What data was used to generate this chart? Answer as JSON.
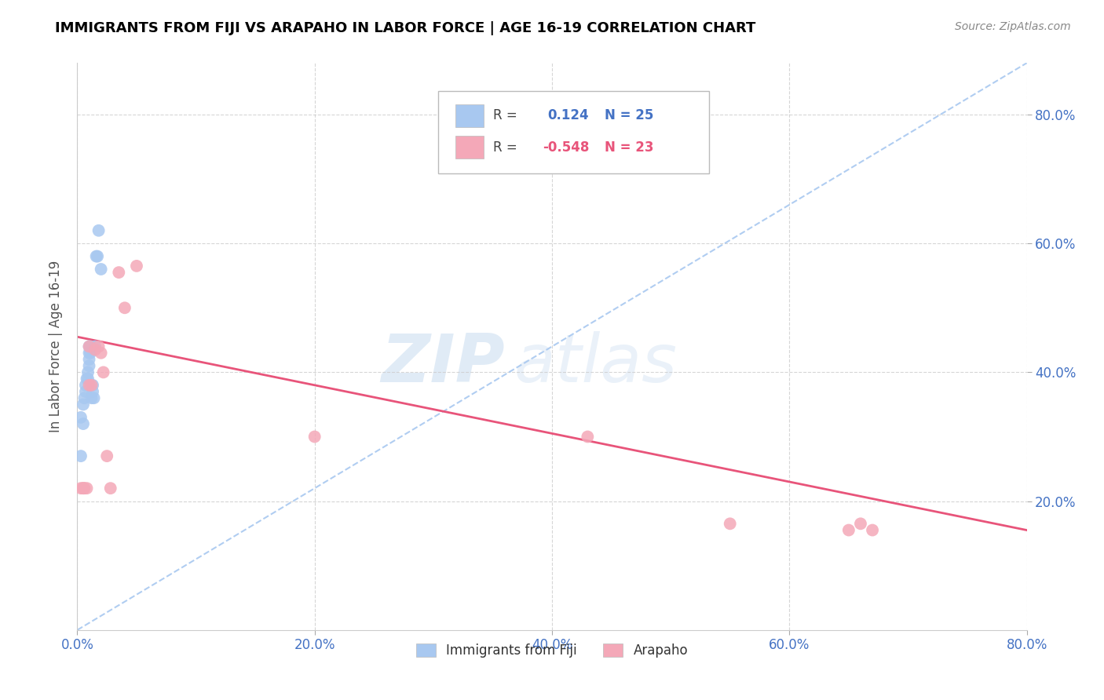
{
  "title": "IMMIGRANTS FROM FIJI VS ARAPAHO IN LABOR FORCE | AGE 16-19 CORRELATION CHART",
  "source_text": "Source: ZipAtlas.com",
  "ylabel": "In Labor Force | Age 16-19",
  "xlim": [
    0.0,
    0.8
  ],
  "ylim": [
    0.0,
    0.88
  ],
  "x_ticks": [
    0.0,
    0.2,
    0.4,
    0.6,
    0.8
  ],
  "x_tick_labels": [
    "0.0%",
    "20.0%",
    "40.0%",
    "60.0%",
    "80.0%"
  ],
  "y_ticks": [
    0.2,
    0.4,
    0.6,
    0.8
  ],
  "y_tick_labels": [
    "20.0%",
    "40.0%",
    "60.0%",
    "80.0%"
  ],
  "fiji_x": [
    0.003,
    0.003,
    0.005,
    0.005,
    0.006,
    0.007,
    0.007,
    0.008,
    0.009,
    0.009,
    0.01,
    0.01,
    0.01,
    0.01,
    0.011,
    0.011,
    0.012,
    0.013,
    0.013,
    0.014,
    0.015,
    0.016,
    0.017,
    0.018,
    0.02
  ],
  "fiji_y": [
    0.27,
    0.33,
    0.32,
    0.35,
    0.36,
    0.37,
    0.38,
    0.39,
    0.39,
    0.4,
    0.41,
    0.42,
    0.43,
    0.44,
    0.43,
    0.44,
    0.36,
    0.38,
    0.37,
    0.36,
    0.44,
    0.58,
    0.58,
    0.62,
    0.56
  ],
  "arapaho_x": [
    0.003,
    0.005,
    0.005,
    0.006,
    0.008,
    0.01,
    0.01,
    0.012,
    0.015,
    0.018,
    0.02,
    0.022,
    0.025,
    0.028,
    0.035,
    0.04,
    0.05,
    0.2,
    0.43,
    0.55,
    0.65,
    0.66,
    0.67
  ],
  "arapaho_y": [
    0.22,
    0.22,
    0.22,
    0.22,
    0.22,
    0.44,
    0.38,
    0.38,
    0.435,
    0.44,
    0.43,
    0.4,
    0.27,
    0.22,
    0.555,
    0.5,
    0.565,
    0.3,
    0.3,
    0.165,
    0.155,
    0.165,
    0.155
  ],
  "fiji_color": "#A8C8F0",
  "arapaho_color": "#F4A8B8",
  "fiji_line_color": "#A8C8F0",
  "arapaho_line_color": "#E8547A",
  "fiji_R": 0.124,
  "fiji_N": 25,
  "arapaho_R": -0.548,
  "arapaho_N": 23,
  "watermark_zip": "ZIP",
  "watermark_atlas": "atlas",
  "grid_color": "#CCCCCC",
  "background_color": "#FFFFFF",
  "title_color": "#000000",
  "tick_label_color": "#4472C4",
  "blue_trendline_x0": 0.0,
  "blue_trendline_y0": 0.0,
  "blue_trendline_x1": 0.8,
  "blue_trendline_y1": 0.88,
  "pink_trendline_x0": 0.0,
  "pink_trendline_y0": 0.455,
  "pink_trendline_x1": 0.8,
  "pink_trendline_y1": 0.155
}
